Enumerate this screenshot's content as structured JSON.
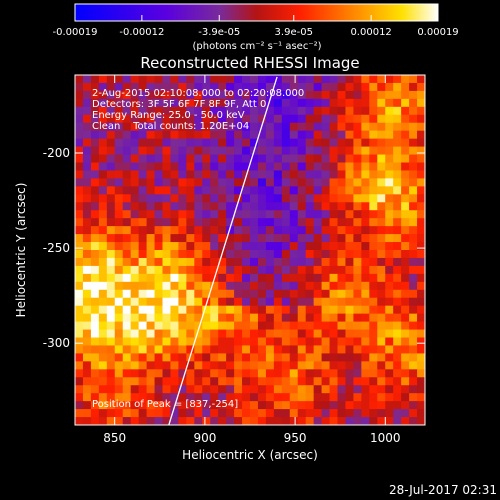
{
  "chart_data": {
    "type": "heatmap",
    "title": "Reconstructed RHESSI Image",
    "xlabel": "Heliocentric X (arcsec)",
    "ylabel": "Heliocentric Y (arcsec)",
    "xlim": [
      828,
      1022
    ],
    "ylim": [
      -343,
      -159
    ],
    "x_ticks": [
      "850",
      "900",
      "950",
      "1000"
    ],
    "x_tick_values": [
      850,
      900,
      950,
      1000
    ],
    "y_ticks": [
      "-200",
      "-250",
      "-300"
    ],
    "y_tick_values": [
      -200,
      -250,
      -300
    ],
    "colorbar": {
      "ticks": [
        "-0.00019",
        "-0.00012",
        "-3.9e-05",
        "3.9e-05",
        "0.00012",
        "0.00019"
      ],
      "tick_values": [
        -0.00019,
        -0.00012,
        -3.9e-05,
        3.9e-05,
        0.00012,
        0.00019
      ],
      "range": [
        -0.00019,
        0.00019
      ],
      "unit_label": "(photons cm⁻² s⁻¹ asec⁻²)"
    },
    "annotations": {
      "time_range": "2-Aug-2015 02:10:08.000 to 02:20:08.000",
      "detectors": "Detectors: 3F 5F 6F 7F 8F 9F, Att 0",
      "energy": "Energy Range: 25.0 - 50.0 keV",
      "clean": "Clean    Total counts: 1.20E+04",
      "peak": "Position of Peak = [837,-254]"
    },
    "limb_line": {
      "x": [
        880,
        940
      ],
      "y": [
        -343,
        -160
      ]
    },
    "colors": {
      "background": "#000000",
      "text": "#ffffff"
    }
  },
  "footer": {
    "timestamp": "28-Jul-2017 02:31"
  }
}
